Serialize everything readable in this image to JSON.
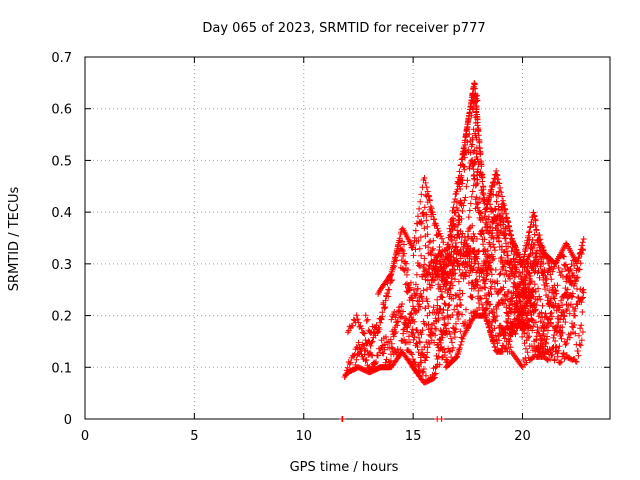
{
  "chart_data": {
    "type": "scatter",
    "title": "Day 065 of 2023, SRMTID for receiver p777",
    "xlabel": "GPS time / hours",
    "ylabel": "SRMTID / TECUs",
    "xlim": [
      0,
      24
    ],
    "ylim": [
      0,
      0.7
    ],
    "xticks": [
      0,
      5,
      10,
      15,
      20
    ],
    "yticks": [
      0,
      0.1,
      0.2,
      0.3,
      0.4,
      0.5,
      0.6,
      0.7
    ],
    "xtick_labels": [
      "0",
      "5",
      "10",
      "15",
      "20"
    ],
    "ytick_labels": [
      "0",
      "0.1",
      "0.2",
      "0.3",
      "0.4",
      "0.5",
      "0.6",
      "0.7"
    ],
    "grid": true,
    "marker": "+",
    "color": "#ff0000",
    "series_profile": [
      {
        "x": 11.7,
        "y_min": 0.07,
        "y_max": 0.14
      },
      {
        "x": 12.0,
        "y_min": 0.09,
        "y_max": 0.17
      },
      {
        "x": 12.5,
        "y_min": 0.1,
        "y_max": 0.23
      },
      {
        "x": 13.0,
        "y_min": 0.09,
        "y_max": 0.21
      },
      {
        "x": 13.5,
        "y_min": 0.1,
        "y_max": 0.25
      },
      {
        "x": 14.0,
        "y_min": 0.1,
        "y_max": 0.28
      },
      {
        "x": 14.5,
        "y_min": 0.13,
        "y_max": 0.37
      },
      {
        "x": 15.0,
        "y_min": 0.1,
        "y_max": 0.33
      },
      {
        "x": 15.5,
        "y_min": 0.07,
        "y_max": 0.47
      },
      {
        "x": 16.0,
        "y_min": 0.08,
        "y_max": 0.38
      },
      {
        "x": 16.5,
        "y_min": 0.1,
        "y_max": 0.33
      },
      {
        "x": 17.0,
        "y_min": 0.12,
        "y_max": 0.45
      },
      {
        "x": 17.3,
        "y_min": 0.16,
        "y_max": 0.52
      },
      {
        "x": 17.8,
        "y_min": 0.2,
        "y_max": 0.65
      },
      {
        "x": 18.3,
        "y_min": 0.2,
        "y_max": 0.4
      },
      {
        "x": 18.8,
        "y_min": 0.13,
        "y_max": 0.48
      },
      {
        "x": 19.5,
        "y_min": 0.13,
        "y_max": 0.35
      },
      {
        "x": 20.0,
        "y_min": 0.1,
        "y_max": 0.3
      },
      {
        "x": 20.5,
        "y_min": 0.12,
        "y_max": 0.4
      },
      {
        "x": 21.0,
        "y_min": 0.12,
        "y_max": 0.32
      },
      {
        "x": 21.5,
        "y_min": 0.1,
        "y_max": 0.3
      },
      {
        "x": 22.0,
        "y_min": 0.12,
        "y_max": 0.34
      },
      {
        "x": 22.5,
        "y_min": 0.11,
        "y_max": 0.3
      },
      {
        "x": 22.8,
        "y_min": 0.17,
        "y_max": 0.35
      }
    ],
    "zero_points": [
      {
        "x": 11.75,
        "y": 0
      },
      {
        "x": 11.78,
        "y": 0
      },
      {
        "x": 16.1,
        "y": 0
      },
      {
        "x": 16.3,
        "y": 0
      }
    ]
  }
}
